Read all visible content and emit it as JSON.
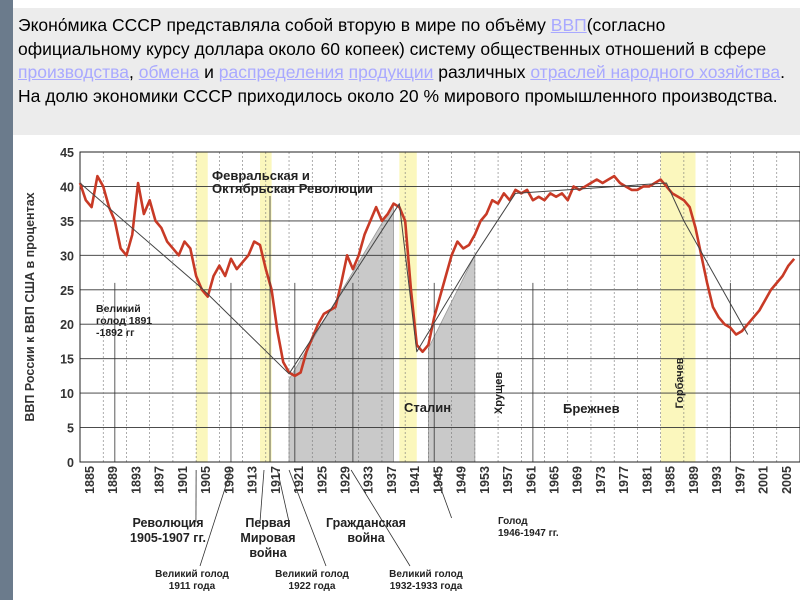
{
  "text": {
    "p1": "Эконо́мика СССР представляла собой вторую в мире по объёму ",
    "l1": "ВВП",
    "p2": "(согласно официальному курсу доллара около 60 копеек) систему общественных отношений в сфере ",
    "l2": "производства",
    "p3": ", ",
    "l3": "обмена",
    "p4": " и ",
    "l4": "распределения",
    "p5": " ",
    "l5": "продукции",
    "p6": " различных ",
    "l6": "отраслей народного хозяйства",
    "p7": ". На долю экономики СССР приходилось около 20 % мирового промышленного производства."
  },
  "chart_data": {
    "type": "line",
    "ylabel": "ВВП России к ВВП США в процентах",
    "xlim": [
      1885,
      2009
    ],
    "ylim": [
      0,
      45
    ],
    "x_ticks": [
      1885,
      1889,
      1893,
      1897,
      1901,
      1905,
      1909,
      1913,
      1917,
      1921,
      1925,
      1929,
      1933,
      1937,
      1941,
      1945,
      1949,
      1953,
      1957,
      1961,
      1965,
      1969,
      1973,
      1977,
      1981,
      1985,
      1989,
      1993,
      1997,
      2001,
      2005
    ],
    "y_ticks": [
      0,
      5,
      10,
      15,
      20,
      25,
      30,
      35,
      40,
      45
    ],
    "grid": true,
    "series": [
      {
        "name": "",
        "color": "#c83a26",
        "points": [
          [
            1885,
            40.5
          ],
          [
            1886,
            38
          ],
          [
            1887,
            37
          ],
          [
            1888,
            41.5
          ],
          [
            1889,
            40
          ],
          [
            1890,
            37
          ],
          [
            1891,
            35
          ],
          [
            1892,
            31
          ],
          [
            1893,
            30
          ],
          [
            1894,
            33
          ],
          [
            1895,
            40.5
          ],
          [
            1896,
            36
          ],
          [
            1897,
            38
          ],
          [
            1898,
            35
          ],
          [
            1899,
            34
          ],
          [
            1900,
            32
          ],
          [
            1901,
            31
          ],
          [
            1902,
            30
          ],
          [
            1903,
            32
          ],
          [
            1904,
            31
          ],
          [
            1905,
            27
          ],
          [
            1906,
            25
          ],
          [
            1907,
            24
          ],
          [
            1908,
            27
          ],
          [
            1909,
            28.5
          ],
          [
            1910,
            27
          ],
          [
            1911,
            29.5
          ],
          [
            1912,
            28
          ],
          [
            1913,
            29
          ],
          [
            1914,
            30
          ],
          [
            1915,
            32
          ],
          [
            1916,
            31.5
          ],
          [
            1917,
            28
          ],
          [
            1918,
            25
          ],
          [
            1919,
            19
          ],
          [
            1920,
            14.5
          ],
          [
            1921,
            13
          ],
          [
            1922,
            12.5
          ],
          [
            1923,
            13
          ],
          [
            1924,
            16
          ],
          [
            1925,
            18
          ],
          [
            1926,
            20
          ],
          [
            1927,
            21.5
          ],
          [
            1928,
            22
          ],
          [
            1929,
            22.5
          ],
          [
            1930,
            26
          ],
          [
            1931,
            30
          ],
          [
            1932,
            28
          ],
          [
            1933,
            30
          ],
          [
            1934,
            33
          ],
          [
            1935,
            35
          ],
          [
            1936,
            37
          ],
          [
            1937,
            35
          ],
          [
            1938,
            36
          ],
          [
            1939,
            37.5
          ],
          [
            1940,
            37
          ],
          [
            1941,
            35
          ],
          [
            1942,
            25
          ],
          [
            1943,
            17
          ],
          [
            1944,
            16
          ],
          [
            1945,
            17
          ],
          [
            1946,
            21
          ],
          [
            1947,
            24
          ],
          [
            1948,
            27
          ],
          [
            1949,
            30
          ],
          [
            1950,
            32
          ],
          [
            1951,
            31
          ],
          [
            1952,
            31.5
          ],
          [
            1953,
            33
          ],
          [
            1954,
            35
          ],
          [
            1955,
            36
          ],
          [
            1956,
            38
          ],
          [
            1957,
            37.5
          ],
          [
            1958,
            39
          ],
          [
            1959,
            38
          ],
          [
            1960,
            39.5
          ],
          [
            1961,
            39
          ],
          [
            1962,
            39.5
          ],
          [
            1963,
            38
          ],
          [
            1964,
            38.5
          ],
          [
            1965,
            38
          ],
          [
            1966,
            39
          ],
          [
            1967,
            38.5
          ],
          [
            1968,
            39
          ],
          [
            1969,
            38
          ],
          [
            1970,
            40
          ],
          [
            1971,
            39.5
          ],
          [
            1972,
            40
          ],
          [
            1973,
            40.5
          ],
          [
            1974,
            41
          ],
          [
            1975,
            40.5
          ],
          [
            1976,
            41
          ],
          [
            1977,
            41.5
          ],
          [
            1978,
            40.5
          ],
          [
            1979,
            40
          ],
          [
            1980,
            39.5
          ],
          [
            1981,
            39.5
          ],
          [
            1982,
            40
          ],
          [
            1983,
            40
          ],
          [
            1984,
            40.5
          ],
          [
            1985,
            41
          ],
          [
            1986,
            40
          ],
          [
            1987,
            39
          ],
          [
            1988,
            38.5
          ],
          [
            1989,
            38
          ],
          [
            1990,
            37
          ],
          [
            1991,
            34
          ],
          [
            1992,
            30
          ],
          [
            1993,
            26
          ],
          [
            1994,
            22.5
          ],
          [
            1995,
            21
          ],
          [
            1996,
            20
          ],
          [
            1997,
            19.5
          ],
          [
            1998,
            18.5
          ],
          [
            1999,
            19
          ],
          [
            2000,
            20
          ],
          [
            2001,
            21
          ],
          [
            2002,
            22
          ],
          [
            2003,
            23.5
          ],
          [
            2004,
            25
          ],
          [
            2005,
            26
          ],
          [
            2006,
            27
          ],
          [
            2007,
            28.5
          ],
          [
            2008,
            29.5
          ]
        ]
      },
      {
        "name": "",
        "color": "#444444",
        "points": [
          [
            1885,
            40.5
          ],
          [
            1906,
            25.2
          ],
          [
            1921,
            12.8
          ],
          [
            1940,
            37.5
          ],
          [
            1943,
            16
          ],
          [
            1953,
            30
          ],
          [
            1960,
            39
          ],
          [
            1986,
            40.5
          ],
          [
            1989,
            35
          ],
          [
            2000,
            18.5
          ]
        ]
      }
    ],
    "bands": [
      [
        1905,
        1907
      ],
      [
        1916,
        1918
      ],
      [
        1940,
        1943
      ],
      [
        1985,
        1991
      ]
    ],
    "vlines": [
      1891,
      1911,
      1922,
      1932,
      1946,
      1963,
      1997
    ],
    "gray_regions": [
      [
        [
          1921,
          12
        ],
        [
          1939,
          37.5
        ],
        [
          1939,
          0
        ],
        [
          1921,
          0
        ]
      ],
      [
        [
          1945,
          16.5
        ],
        [
          1953,
          30
        ],
        [
          1953,
          0
        ],
        [
          1945,
          0
        ]
      ]
    ],
    "annotations": {
      "revolutions": "Февральская и Октябрьская Революции",
      "famine1891": [
        "Великий",
        "голод 1891",
        "-1892 гг"
      ],
      "stalin": "Сталин",
      "khrushchev": "Хрущев",
      "brezhnev": "Брежнев",
      "gorbachev": "Горбачев",
      "revolution1905": [
        "Революция",
        "1905-1907 гг."
      ],
      "ww1": [
        "Первая",
        "Мировая",
        "война"
      ],
      "civilwar": [
        "Гражданская",
        "война"
      ],
      "famine1946": [
        "Голод",
        "1946-1947 гг."
      ],
      "famine1911": [
        "Великий голод",
        "1911 года"
      ],
      "famine1922": [
        "Великий голод",
        "1922 года"
      ],
      "famine1932": [
        "Великий голод",
        "1932-1933 года"
      ]
    }
  }
}
